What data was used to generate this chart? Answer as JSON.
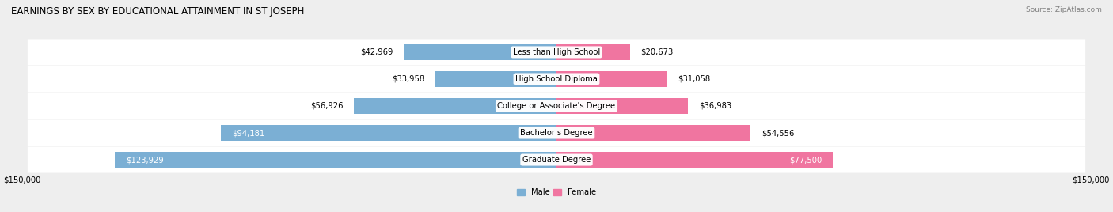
{
  "title": "EARNINGS BY SEX BY EDUCATIONAL ATTAINMENT IN ST JOSEPH",
  "source": "Source: ZipAtlas.com",
  "categories": [
    "Less than High School",
    "High School Diploma",
    "College or Associate's Degree",
    "Bachelor's Degree",
    "Graduate Degree"
  ],
  "male_values": [
    42969,
    33958,
    56926,
    94181,
    123929
  ],
  "female_values": [
    20673,
    31058,
    36983,
    54556,
    77500
  ],
  "max_value": 150000,
  "male_color": "#7bafd4",
  "female_color": "#f075a0",
  "male_label": "Male",
  "female_label": "Female",
  "bg_color": "#eeeeee",
  "bar_height": 0.58,
  "title_fontsize": 8.5,
  "label_fontsize": 7.2,
  "tick_fontsize": 7.2
}
